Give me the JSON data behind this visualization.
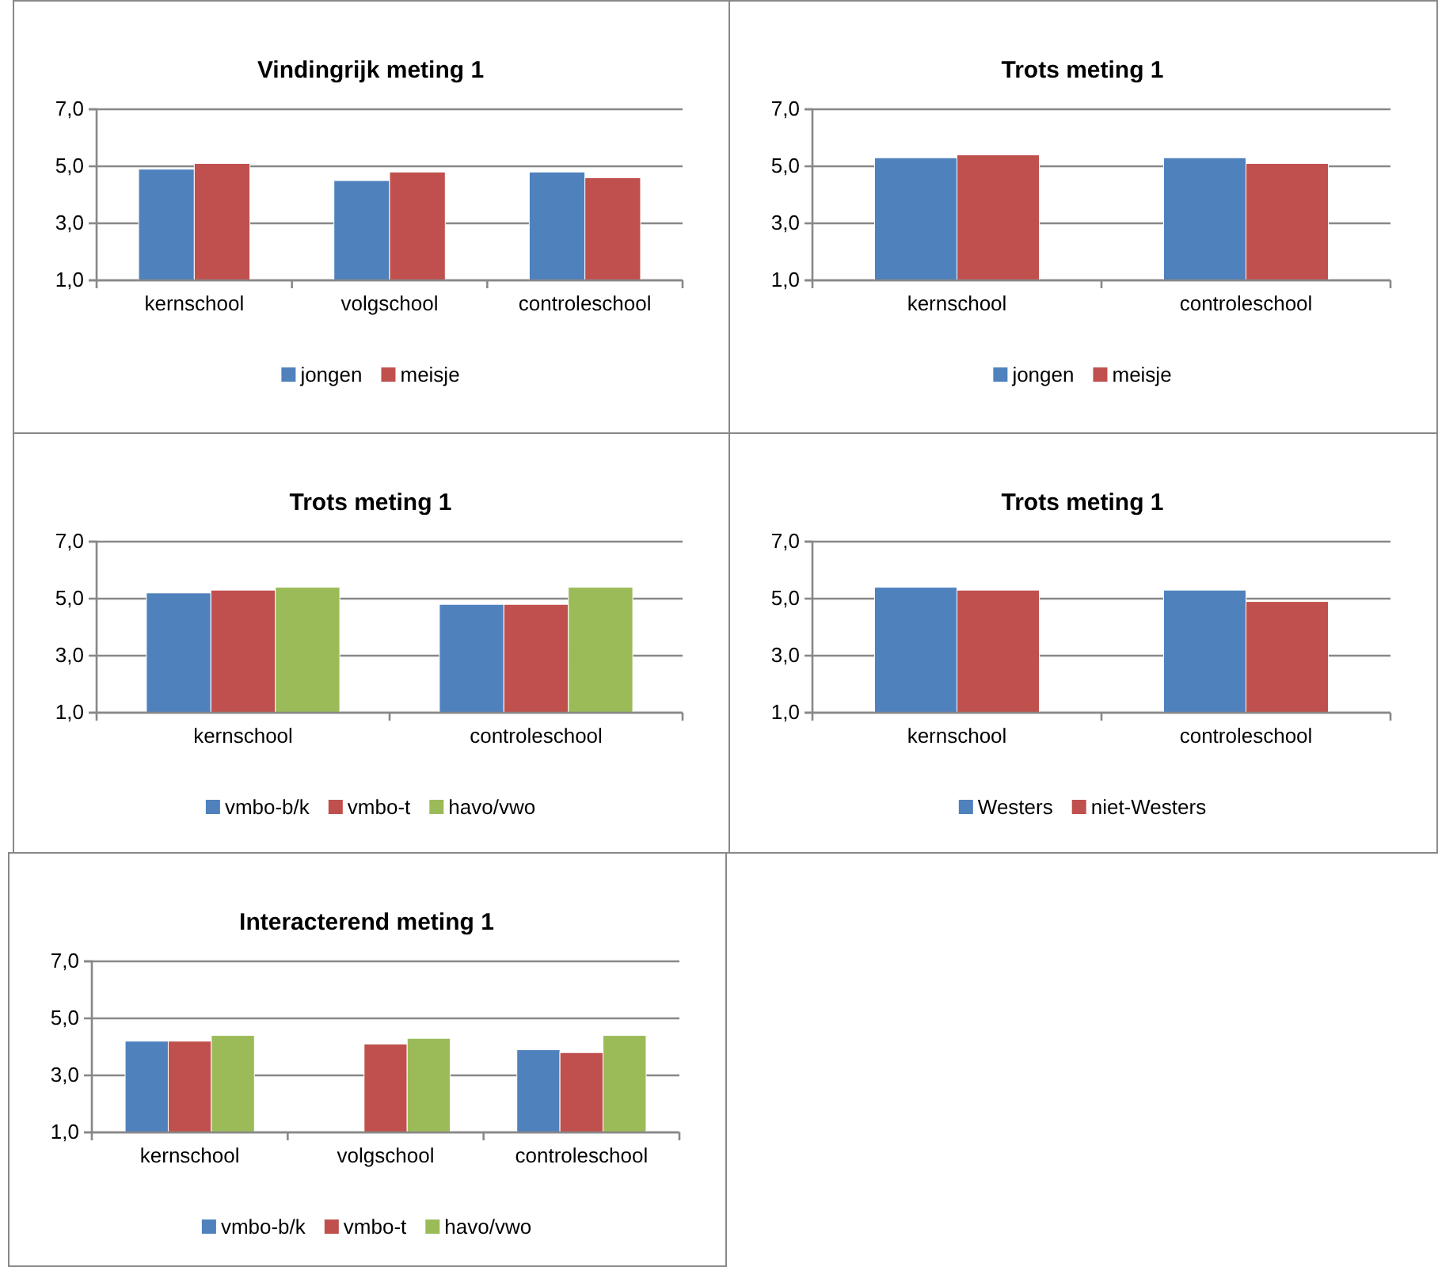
{
  "chart_data": [
    {
      "type": "bar",
      "title": "Vindingrijk meting 1",
      "categories": [
        "kernschool",
        "volgschool",
        "controleschool"
      ],
      "series": [
        {
          "name": "jongen",
          "color": "#4f81bd",
          "values": [
            4.9,
            4.5,
            4.8
          ]
        },
        {
          "name": "meisje",
          "color": "#c0504d",
          "values": [
            5.1,
            4.8,
            4.6
          ]
        }
      ],
      "ylim": [
        1,
        7
      ],
      "yticks": [
        {
          "value": 1,
          "label": "1,0"
        },
        {
          "value": 3,
          "label": "3,0"
        },
        {
          "value": 5,
          "label": "5,0"
        },
        {
          "value": 7,
          "label": "7,0"
        }
      ],
      "grid": "y",
      "legend": "bottom"
    },
    {
      "type": "bar",
      "title": "Trots meting 1",
      "categories": [
        "kernschool",
        "controleschool"
      ],
      "series": [
        {
          "name": "jongen",
          "color": "#4f81bd",
          "values": [
            5.3,
            5.3
          ]
        },
        {
          "name": "meisje",
          "color": "#c0504d",
          "values": [
            5.4,
            5.1
          ]
        }
      ],
      "ylim": [
        1,
        7
      ],
      "yticks": [
        {
          "value": 1,
          "label": "1,0"
        },
        {
          "value": 3,
          "label": "3,0"
        },
        {
          "value": 5,
          "label": "5,0"
        },
        {
          "value": 7,
          "label": "7,0"
        }
      ],
      "grid": "y",
      "legend": "bottom"
    },
    {
      "type": "bar",
      "title": "Trots meting 1",
      "categories": [
        "kernschool",
        "controleschool"
      ],
      "series": [
        {
          "name": "vmbo-b/k",
          "color": "#4f81bd",
          "values": [
            5.2,
            4.8
          ]
        },
        {
          "name": "vmbo-t",
          "color": "#c0504d",
          "values": [
            5.3,
            4.8
          ]
        },
        {
          "name": "havo/vwo",
          "color": "#9bbb59",
          "values": [
            5.4,
            5.4
          ]
        }
      ],
      "ylim": [
        1,
        7
      ],
      "yticks": [
        {
          "value": 1,
          "label": "1,0"
        },
        {
          "value": 3,
          "label": "3,0"
        },
        {
          "value": 5,
          "label": "5,0"
        },
        {
          "value": 7,
          "label": "7,0"
        }
      ],
      "grid": "y",
      "legend": "bottom"
    },
    {
      "type": "bar",
      "title": "Trots meting 1",
      "categories": [
        "kernschool",
        "controleschool"
      ],
      "series": [
        {
          "name": "Westers",
          "color": "#4f81bd",
          "values": [
            5.4,
            5.3
          ]
        },
        {
          "name": "niet-Westers",
          "color": "#c0504d",
          "values": [
            5.3,
            4.9
          ]
        }
      ],
      "ylim": [
        1,
        7
      ],
      "yticks": [
        {
          "value": 1,
          "label": "1,0"
        },
        {
          "value": 3,
          "label": "3,0"
        },
        {
          "value": 5,
          "label": "5,0"
        },
        {
          "value": 7,
          "label": "7,0"
        }
      ],
      "grid": "y",
      "legend": "bottom"
    },
    {
      "type": "bar",
      "title": "Interacterend meting 1",
      "categories": [
        "kernschool",
        "volgschool",
        "controleschool"
      ],
      "series": [
        {
          "name": "vmbo-b/k",
          "color": "#4f81bd",
          "values": [
            4.2,
            null,
            3.9
          ]
        },
        {
          "name": "vmbo-t",
          "color": "#c0504d",
          "values": [
            4.2,
            4.1,
            3.8
          ]
        },
        {
          "name": "havo/vwo",
          "color": "#9bbb59",
          "values": [
            4.4,
            4.3,
            4.4
          ]
        }
      ],
      "ylim": [
        1,
        7
      ],
      "yticks": [
        {
          "value": 1,
          "label": "1,0"
        },
        {
          "value": 3,
          "label": "3,0"
        },
        {
          "value": 5,
          "label": "5,0"
        },
        {
          "value": 7,
          "label": "7,0"
        }
      ],
      "grid": "y",
      "legend": "bottom"
    }
  ]
}
